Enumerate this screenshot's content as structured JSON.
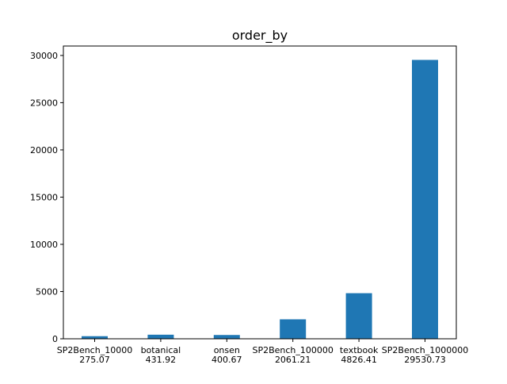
{
  "chart_data": {
    "type": "bar",
    "title": "order_by",
    "categories": [
      "SP2Bench_10000",
      "botanical",
      "onsen",
      "SP2Bench_100000",
      "textbook",
      "SP2Bench_1000000"
    ],
    "values": [
      275.07,
      431.92,
      400.67,
      2061.21,
      4826.41,
      29530.73
    ],
    "value_labels": [
      "275.07",
      "431.92",
      "400.67",
      "2061.21",
      "4826.41",
      "29530.73"
    ],
    "xlabel": "",
    "ylabel": "",
    "ylim": [
      0,
      31000
    ],
    "yticks": [
      0,
      5000,
      10000,
      15000,
      20000,
      25000,
      30000
    ],
    "grid": false,
    "bar_color": "#1f77b4",
    "axis_color": "#000000"
  }
}
